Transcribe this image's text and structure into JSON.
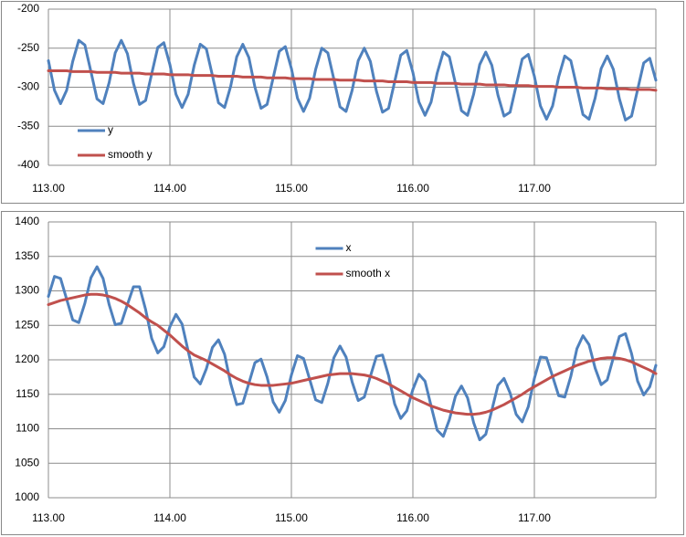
{
  "chart_data": [
    {
      "type": "line",
      "x": [
        113,
        113.05,
        113.1,
        113.15,
        113.2,
        113.25,
        113.3,
        113.35,
        113.4,
        113.45,
        113.5,
        113.55,
        113.6,
        113.65,
        113.7,
        113.75,
        113.8,
        113.85,
        113.9,
        113.95,
        114,
        114.05,
        114.1,
        114.15,
        114.2,
        114.25,
        114.3,
        114.35,
        114.4,
        114.45,
        114.5,
        114.55,
        114.6,
        114.65,
        114.7,
        114.75,
        114.8,
        114.85,
        114.9,
        114.95,
        115,
        115.05,
        115.1,
        115.15,
        115.2,
        115.25,
        115.3,
        115.35,
        115.4,
        115.45,
        115.5,
        115.55,
        115.6,
        115.65,
        115.7,
        115.75,
        115.8,
        115.85,
        115.9,
        115.95,
        116,
        116.05,
        116.1,
        116.15,
        116.2,
        116.25,
        116.3,
        116.35,
        116.4,
        116.45,
        116.5,
        116.55,
        116.6,
        116.65,
        116.7,
        116.75,
        116.8,
        116.85,
        116.9,
        116.95,
        117,
        117.05,
        117.1,
        117.15,
        117.2,
        117.25,
        117.3,
        117.35,
        117.4,
        117.45,
        117.5,
        117.55,
        117.6,
        117.65,
        117.7,
        117.75,
        117.8,
        117.85,
        117.9,
        117.95,
        118
      ],
      "series": [
        {
          "name": "y",
          "color": "#4f81bd",
          "values": [
            -266,
            -304,
            -321,
            -304,
            -267,
            -240,
            -246,
            -280,
            -315,
            -321,
            -294,
            -256,
            -240,
            -257,
            -295,
            -322,
            -317,
            -283,
            -249,
            -243,
            -271,
            -309,
            -326,
            -309,
            -272,
            -245,
            -251,
            -285,
            -320,
            -326,
            -299,
            -261,
            -245,
            -262,
            -300,
            -327,
            -322,
            -288,
            -254,
            -248,
            -276,
            -314,
            -331,
            -314,
            -277,
            -250,
            -256,
            -290,
            -325,
            -331,
            -304,
            -266,
            -250,
            -267,
            -305,
            -332,
            -327,
            -293,
            -259,
            -253,
            -281,
            -319,
            -336,
            -319,
            -282,
            -255,
            -261,
            -295,
            -330,
            -336,
            -309,
            -271,
            -255,
            -272,
            -310,
            -337,
            -332,
            -298,
            -264,
            -258,
            -286,
            -324,
            -341,
            -324,
            -287,
            -260,
            -266,
            -300,
            -335,
            -341,
            -314,
            -276,
            -260,
            -277,
            -315,
            -342,
            -337,
            -303,
            -269,
            -263,
            -291
          ]
        },
        {
          "name": "smooth y",
          "color": "#c0504d",
          "values": [
            -279,
            -279,
            -279,
            -279,
            -280,
            -280,
            -280,
            -280,
            -281,
            -281,
            -281,
            -281,
            -282,
            -282,
            -282,
            -282,
            -283,
            -283,
            -283,
            -283,
            -284,
            -284,
            -284,
            -284,
            -285,
            -285,
            -285,
            -285,
            -286,
            -286,
            -286,
            -286,
            -287,
            -287,
            -287,
            -287,
            -288,
            -288,
            -288,
            -288,
            -289,
            -289,
            -289,
            -289,
            -290,
            -290,
            -290,
            -290,
            -291,
            -291,
            -291,
            -291,
            -292,
            -292,
            -292,
            -292,
            -293,
            -293,
            -293,
            -293,
            -294,
            -294,
            -294,
            -294,
            -295,
            -295,
            -295,
            -295,
            -296,
            -296,
            -296,
            -296,
            -297,
            -297,
            -297,
            -297,
            -298,
            -298,
            -298,
            -298,
            -299,
            -299,
            -299,
            -299,
            -300,
            -300,
            -300,
            -300,
            -301,
            -301,
            -301,
            -301,
            -302,
            -302,
            -302,
            -302,
            -303,
            -303,
            -303,
            -303,
            -304
          ]
        }
      ],
      "xlim": [
        113,
        118
      ],
      "xticks": [
        {
          "value": 113,
          "label": "113.00"
        },
        {
          "value": 114,
          "label": "114.00"
        },
        {
          "value": 115,
          "label": "115.00"
        },
        {
          "value": 116,
          "label": "116.00"
        },
        {
          "value": 117,
          "label": "117.00"
        }
      ],
      "ylim": [
        -400,
        -200
      ],
      "yticks": [
        -400,
        -350,
        -300,
        -250,
        -200
      ],
      "grid": true,
      "legend": "lower left"
    },
    {
      "type": "line",
      "x": [
        113,
        113.05,
        113.1,
        113.15,
        113.2,
        113.25,
        113.3,
        113.35,
        113.4,
        113.45,
        113.5,
        113.55,
        113.6,
        113.65,
        113.7,
        113.75,
        113.8,
        113.85,
        113.9,
        113.95,
        114,
        114.05,
        114.1,
        114.15,
        114.2,
        114.25,
        114.3,
        114.35,
        114.4,
        114.45,
        114.5,
        114.55,
        114.6,
        114.65,
        114.7,
        114.75,
        114.8,
        114.85,
        114.9,
        114.95,
        115,
        115.05,
        115.1,
        115.15,
        115.2,
        115.25,
        115.3,
        115.35,
        115.4,
        115.45,
        115.5,
        115.55,
        115.6,
        115.65,
        115.7,
        115.75,
        115.8,
        115.85,
        115.9,
        115.95,
        116,
        116.05,
        116.1,
        116.15,
        116.2,
        116.25,
        116.3,
        116.35,
        116.4,
        116.45,
        116.5,
        116.55,
        116.6,
        116.65,
        116.7,
        116.75,
        116.8,
        116.85,
        116.9,
        116.95,
        117,
        117.05,
        117.1,
        117.15,
        117.2,
        117.25,
        117.3,
        117.35,
        117.4,
        117.45,
        117.5,
        117.55,
        117.6,
        117.65,
        117.7,
        117.75,
        117.8,
        117.85,
        117.9,
        117.95,
        118
      ],
      "series": [
        {
          "name": "x",
          "color": "#4f81bd",
          "values": [
            1292,
            1321,
            1318,
            1288,
            1258,
            1254,
            1282,
            1319,
            1335,
            1318,
            1280,
            1251,
            1253,
            1280,
            1306,
            1306,
            1273,
            1231,
            1210,
            1219,
            1248,
            1266,
            1252,
            1213,
            1175,
            1165,
            1187,
            1218,
            1229,
            1208,
            1166,
            1135,
            1137,
            1166,
            1196,
            1201,
            1175,
            1139,
            1124,
            1141,
            1178,
            1206,
            1202,
            1172,
            1142,
            1138,
            1166,
            1203,
            1220,
            1204,
            1168,
            1141,
            1146,
            1176,
            1205,
            1207,
            1177,
            1136,
            1115,
            1126,
            1157,
            1179,
            1169,
            1133,
            1098,
            1089,
            1113,
            1147,
            1162,
            1145,
            1109,
            1084,
            1092,
            1127,
            1163,
            1173,
            1152,
            1121,
            1110,
            1132,
            1173,
            1204,
            1203,
            1176,
            1148,
            1146,
            1176,
            1216,
            1235,
            1222,
            1188,
            1164,
            1171,
            1203,
            1234,
            1238,
            1209,
            1169,
            1149,
            1161,
            1192
          ]
        },
        {
          "name": "smooth x",
          "color": "#c0504d",
          "values": [
            1280,
            1283,
            1286,
            1288,
            1290,
            1292,
            1294,
            1295,
            1295,
            1294,
            1292,
            1289,
            1285,
            1280,
            1274,
            1268,
            1261,
            1255,
            1250,
            1243,
            1236,
            1228,
            1220,
            1213,
            1207,
            1203,
            1199,
            1194,
            1189,
            1184,
            1178,
            1173,
            1169,
            1166,
            1164,
            1163,
            1163,
            1163,
            1164,
            1165,
            1166,
            1168,
            1170,
            1172,
            1174,
            1176,
            1178,
            1179,
            1180,
            1180,
            1180,
            1179,
            1178,
            1176,
            1173,
            1169,
            1165,
            1160,
            1155,
            1150,
            1145,
            1141,
            1137,
            1133,
            1130,
            1127,
            1125,
            1123,
            1122,
            1121,
            1121,
            1122,
            1124,
            1127,
            1131,
            1135,
            1140,
            1145,
            1150,
            1156,
            1161,
            1166,
            1171,
            1176,
            1180,
            1184,
            1188,
            1192,
            1195,
            1198,
            1200,
            1202,
            1203,
            1203,
            1202,
            1200,
            1197,
            1193,
            1189,
            1185,
            1180
          ]
        }
      ],
      "xlim": [
        113,
        118
      ],
      "xticks": [
        {
          "value": 113,
          "label": "113.00"
        },
        {
          "value": 114,
          "label": "114.00"
        },
        {
          "value": 115,
          "label": "115.00"
        },
        {
          "value": 116,
          "label": "116.00"
        },
        {
          "value": 117,
          "label": "117.00"
        }
      ],
      "ylim": [
        1000,
        1400
      ],
      "yticks": [
        1000,
        1050,
        1100,
        1150,
        1200,
        1250,
        1300,
        1350,
        1400
      ],
      "grid": true,
      "legend": "upper center"
    }
  ]
}
